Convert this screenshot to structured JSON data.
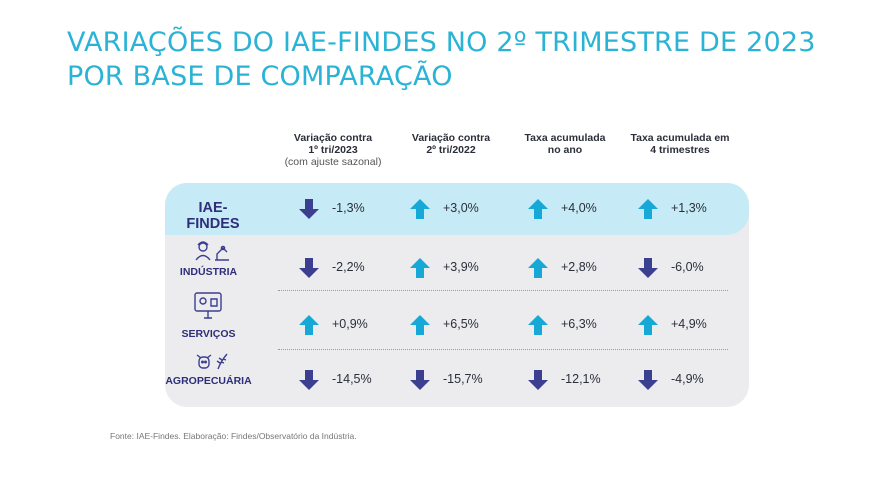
{
  "title": {
    "line1": "VARIAÇÕES DO IAE-FINDES NO 2º TRIMESTRE DE 2023",
    "line2": "POR BASE DE COMPARAÇÃO"
  },
  "columns": [
    {
      "line1": "Variação contra",
      "line2": "1º tri/2023",
      "note": "(com ajuste sazonal)"
    },
    {
      "line1": "Variação contra",
      "line2": "2º tri/2022",
      "note": ""
    },
    {
      "line1": "Taxa acumulada",
      "line2": "no ano",
      "note": ""
    },
    {
      "line1": "Taxa acumulada em",
      "line2": "4 trimestres",
      "note": ""
    }
  ],
  "rows": [
    {
      "label": "IAE-FINDES",
      "icon": "none",
      "cells": [
        {
          "value": "-1,3%",
          "direction": "down"
        },
        {
          "value": "+3,0%",
          "direction": "up"
        },
        {
          "value": "+4,0%",
          "direction": "up"
        },
        {
          "value": "+1,3%",
          "direction": "up"
        }
      ]
    },
    {
      "label": "INDÚSTRIA",
      "icon": "industry-icon",
      "cells": [
        {
          "value": "-2,2%",
          "direction": "down"
        },
        {
          "value": "+3,9%",
          "direction": "up"
        },
        {
          "value": "+2,8%",
          "direction": "up"
        },
        {
          "value": "-6,0%",
          "direction": "down"
        }
      ]
    },
    {
      "label": "SERVIÇOS",
      "icon": "services-icon",
      "cells": [
        {
          "value": "+0,9%",
          "direction": "up"
        },
        {
          "value": "+6,5%",
          "direction": "up"
        },
        {
          "value": "+6,3%",
          "direction": "up"
        },
        {
          "value": "+4,9%",
          "direction": "up"
        }
      ]
    },
    {
      "label": "AGROPECUÁRIA",
      "icon": "agriculture-icon",
      "cells": [
        {
          "value": "-14,5%",
          "direction": "down"
        },
        {
          "value": "-15,7%",
          "direction": "down"
        },
        {
          "value": "-12,1%",
          "direction": "down"
        },
        {
          "value": "-4,9%",
          "direction": "down"
        }
      ]
    }
  ],
  "colors": {
    "up": "#16a9d8",
    "down": "#3b3f8f",
    "title": "#2bb3d6",
    "label": "#2e2e7a"
  },
  "footer": "Fonte: IAE-Findes. Elaboração: Findes/Observatório da Indústria."
}
